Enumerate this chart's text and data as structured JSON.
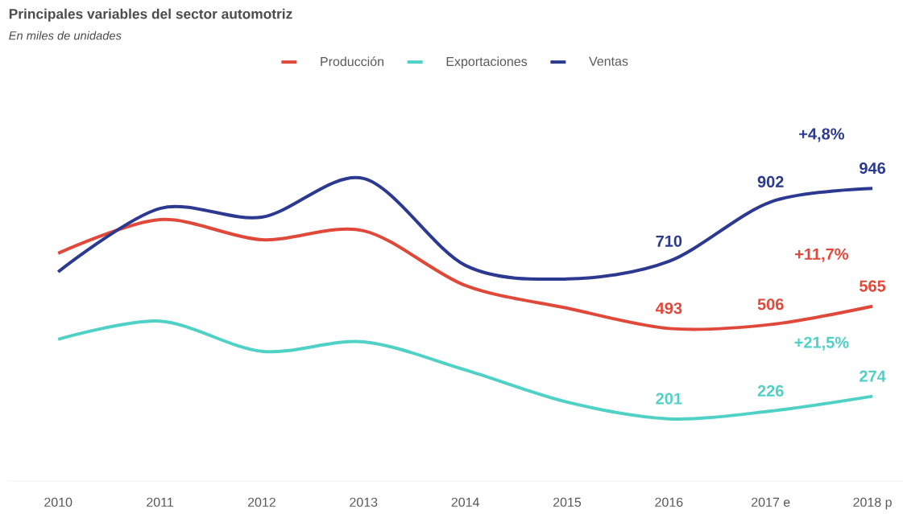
{
  "chart_data": {
    "type": "line",
    "title": "Principales variables del sector automotriz",
    "subtitle": "En miles de unidades",
    "categories": [
      "2010",
      "2011",
      "2012",
      "2013",
      "2014",
      "2015",
      "2016",
      "2017 e",
      "2018 p"
    ],
    "series": [
      {
        "name": "Producción",
        "color": "#e0483a",
        "values": [
          736,
          845,
          780,
          809,
          632,
          559,
          493,
          506,
          565
        ],
        "value_labels": [
          null,
          null,
          null,
          null,
          null,
          null,
          "493",
          "506",
          "565"
        ]
      },
      {
        "name": "Exportaciones",
        "color": "#4fd1c5",
        "values": [
          458,
          517,
          419,
          450,
          359,
          255,
          201,
          226,
          274
        ],
        "value_labels": [
          null,
          null,
          null,
          null,
          null,
          null,
          "201",
          "226",
          "274"
        ]
      },
      {
        "name": "Ventas",
        "color": "#2b3990",
        "values": [
          676,
          881,
          853,
          978,
          697,
          653,
          710,
          902,
          946
        ],
        "value_labels": [
          null,
          null,
          null,
          null,
          null,
          null,
          "710",
          "902",
          "946"
        ]
      }
    ],
    "annotations": [
      "+11,7%",
      "+21,5%",
      "+4,8%"
    ],
    "legend": "top",
    "grid": false,
    "marker": "none",
    "line_style": "solid"
  }
}
